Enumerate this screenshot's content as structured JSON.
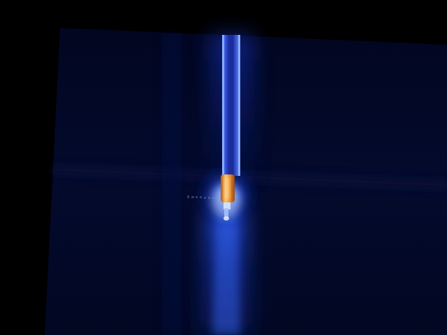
{
  "scene": {
    "subject": "capillary-nozzle-emitting-light",
    "colors": {
      "background": "#000000",
      "panel": "#020824",
      "panel_edge": "#050d33",
      "glow_blue": "#1d4dff",
      "glow_core": "#6fa0ff",
      "capillary_blue": "#2a49d6",
      "tip_orange": "#e88a2a",
      "tip_hot": "#ffd27a"
    }
  }
}
